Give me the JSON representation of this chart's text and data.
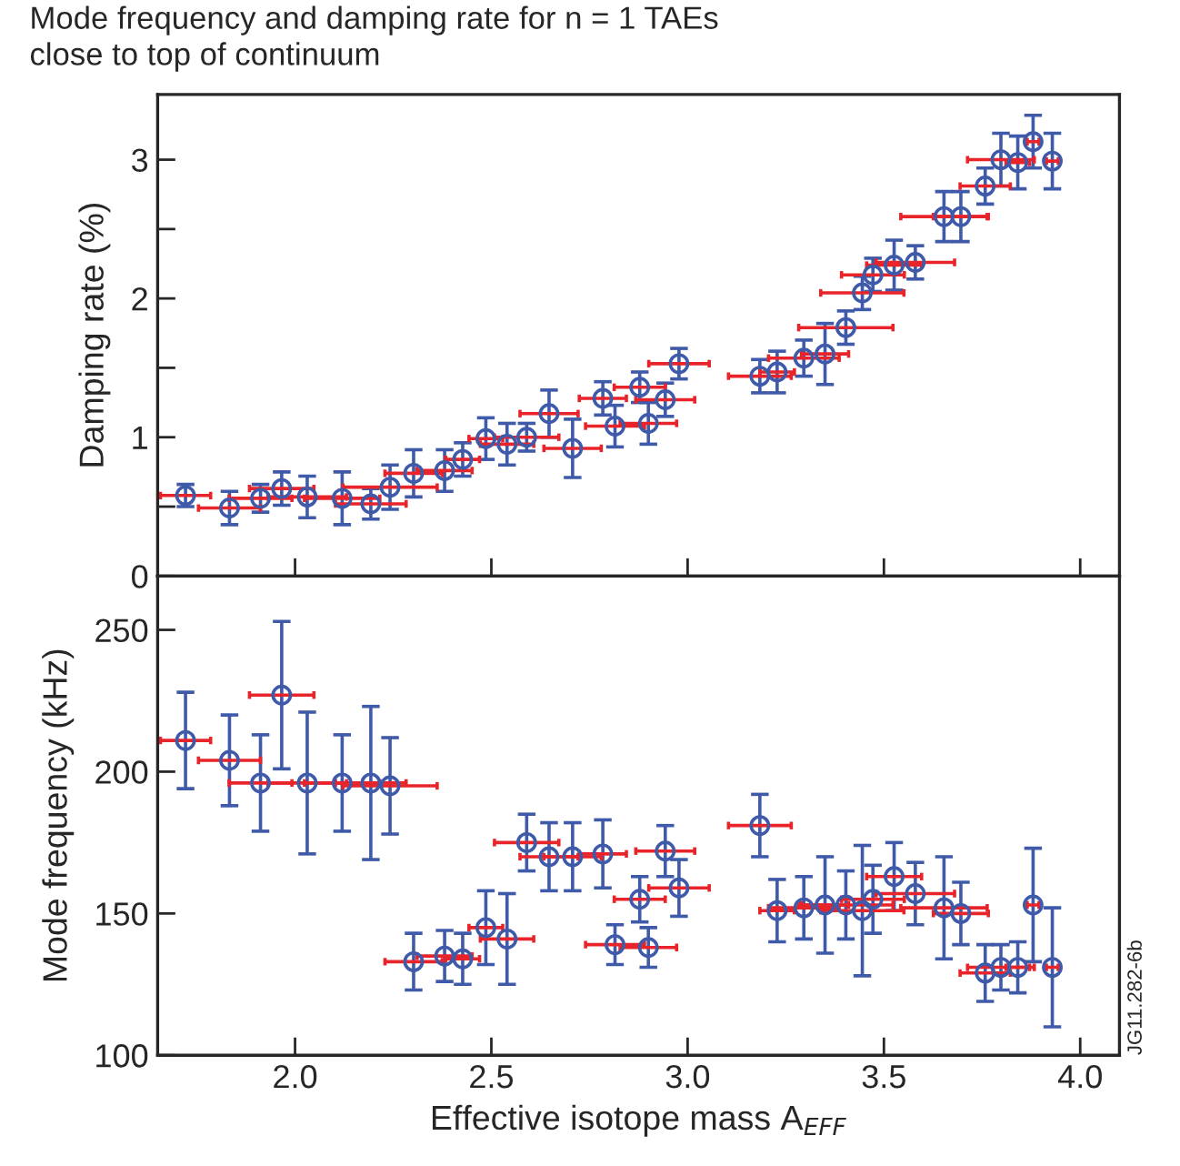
{
  "chart_data": [
    {
      "type": "scatter",
      "title": "Mode frequency and damping rate for n = 1 TAEs\nclose to top of continuum",
      "ylabel": "Damping rate (%)",
      "color": "#3f5aa8",
      "marker": "circle",
      "grid": false,
      "tick_labels": "y",
      "xlim": [
        1.65,
        4.1
      ],
      "xticks": [
        {
          "value": 2.0,
          "label": null
        },
        {
          "value": 2.5,
          "label": null
        },
        {
          "value": 3.0,
          "label": null
        },
        {
          "value": 3.5,
          "label": null
        },
        {
          "value": 4.0,
          "label": null
        }
      ],
      "ylim": [
        0,
        3.47
      ],
      "yticks": [
        0,
        {
          "value": 0.5,
          "label": null
        },
        1,
        {
          "value": 1.5,
          "label": null
        },
        2,
        {
          "value": 2.5,
          "label": null
        },
        3
      ],
      "x": [
        1.721,
        1.833,
        1.912,
        1.966,
        2.031,
        2.12,
        2.193,
        2.242,
        2.302,
        2.381,
        2.427,
        2.486,
        2.54,
        2.59,
        2.647,
        2.707,
        2.784,
        2.815,
        2.878,
        2.9,
        2.943,
        2.978,
        3.184,
        3.228,
        3.296,
        3.35,
        3.403,
        3.445,
        3.472,
        3.526,
        3.58,
        3.653,
        3.696,
        3.758,
        3.798,
        3.841,
        3.88,
        3.929
      ],
      "values": [
        0.58,
        0.49,
        0.56,
        0.63,
        0.57,
        0.56,
        0.52,
        0.64,
        0.74,
        0.76,
        0.84,
        0.99,
        0.95,
        1.0,
        1.17,
        0.92,
        1.28,
        1.08,
        1.36,
        1.1,
        1.27,
        1.53,
        1.44,
        1.47,
        1.57,
        1.6,
        1.79,
        2.04,
        2.17,
        2.24,
        2.26,
        2.59,
        2.59,
        2.81,
        3.0,
        2.98,
        3.13,
        2.99
      ],
      "errors": [
        0.08,
        0.12,
        0.1,
        0.12,
        0.15,
        0.19,
        0.11,
        0.16,
        0.17,
        0.15,
        0.12,
        0.15,
        0.15,
        0.1,
        0.17,
        0.21,
        0.12,
        0.15,
        0.11,
        0.15,
        0.12,
        0.11,
        0.12,
        0.15,
        0.13,
        0.22,
        0.12,
        0.12,
        0.12,
        0.18,
        0.12,
        0.18,
        0.18,
        0.13,
        0.19,
        0.19,
        0.19,
        0.2
      ],
      "xerrors": [
        0.064,
        0.079,
        0.08,
        0.082,
        0.1,
        0.096,
        0.09,
        0.12,
        0.073,
        0.07,
        0.043,
        0.043,
        0.068,
        0.082,
        0.074,
        0.073,
        0.06,
        0.075,
        0.065,
        0.072,
        0.075,
        0.077,
        0.08,
        0.044,
        0.09,
        0.06,
        0.12,
        0.106,
        0.08,
        0.07,
        0.1,
        0.11,
        0.07,
        0.064,
        0.085,
        0.03,
        0.015,
        0.015
      ]
    },
    {
      "type": "scatter",
      "xlabel": "Effective isotope mass A$_{EFF}$",
      "ylabel": "Mode frequency (kHz)",
      "color": "#3f5aa8",
      "marker": "circle",
      "grid": false,
      "annotations": [
        "JG11.282-6b"
      ],
      "xlim": [
        1.65,
        4.1
      ],
      "xticks": [
        {
          "value": 2.0,
          "label": "2.0"
        },
        {
          "value": 2.5,
          "label": "2.5"
        },
        {
          "value": 3.0,
          "label": "3.0"
        },
        {
          "value": 3.5,
          "label": "3.5"
        },
        {
          "value": 4.0,
          "label": "4.0"
        }
      ],
      "ylim": [
        100,
        269
      ],
      "yticks": [
        100,
        150,
        200,
        250
      ],
      "x": [
        1.721,
        1.833,
        1.912,
        1.966,
        2.031,
        2.12,
        2.193,
        2.242,
        2.302,
        2.381,
        2.427,
        2.486,
        2.54,
        2.59,
        2.647,
        2.707,
        2.784,
        2.815,
        2.878,
        2.9,
        2.943,
        2.978,
        3.184,
        3.228,
        3.296,
        3.35,
        3.403,
        3.445,
        3.472,
        3.526,
        3.58,
        3.653,
        3.696,
        3.758,
        3.798,
        3.841,
        3.88,
        3.929
      ],
      "values": [
        211,
        204,
        196,
        227,
        196,
        196,
        196,
        195,
        133,
        135,
        134,
        145,
        141,
        175,
        170,
        170,
        171,
        139,
        155,
        138,
        172,
        159,
        181,
        151,
        152,
        153,
        153,
        151,
        155,
        163,
        157,
        152,
        150,
        129,
        131,
        131,
        153,
        131
      ],
      "errors": [
        17,
        16,
        17,
        26,
        25,
        17,
        27,
        17,
        10,
        9,
        9,
        13,
        16,
        10,
        12,
        12,
        12,
        7,
        8,
        7,
        9,
        10,
        11,
        11,
        11,
        17,
        12,
        23,
        12,
        12,
        11,
        18,
        11,
        10,
        8,
        9,
        20,
        21
      ],
      "xerrors": [
        0.064,
        0.079,
        0.08,
        0.082,
        0.1,
        0.096,
        0.09,
        0.12,
        0.073,
        0.07,
        0.043,
        0.043,
        0.068,
        0.082,
        0.074,
        0.073,
        0.06,
        0.075,
        0.065,
        0.072,
        0.075,
        0.077,
        0.08,
        0.044,
        0.09,
        0.06,
        0.12,
        0.106,
        0.08,
        0.07,
        0.1,
        0.11,
        0.07,
        0.064,
        0.085,
        0.03,
        0.015,
        0.015
      ]
    }
  ]
}
